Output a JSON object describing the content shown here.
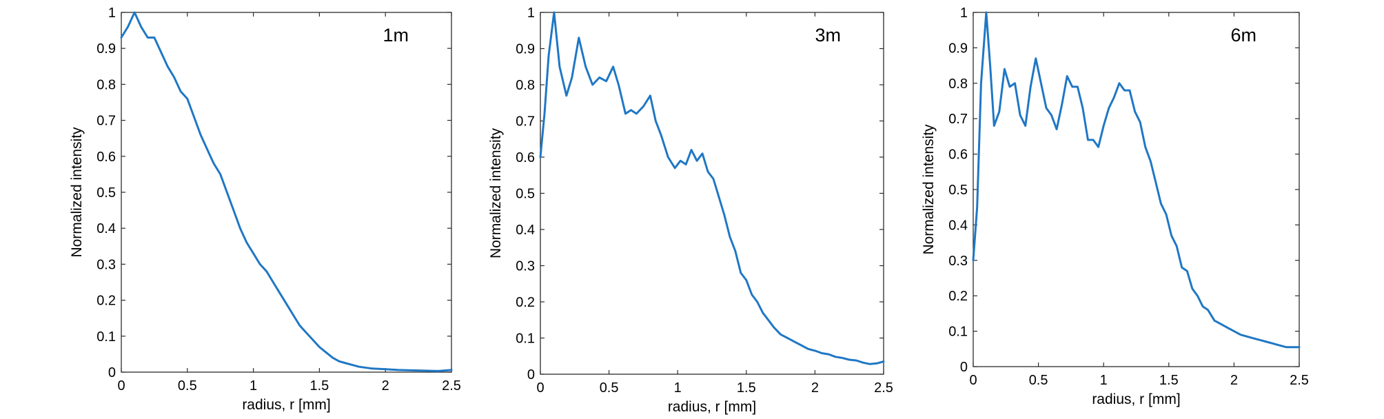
{
  "figure": {
    "panels": [
      {
        "label": "1m"
      },
      {
        "label": "3m"
      },
      {
        "label": "6m"
      }
    ]
  },
  "colors": {
    "line": "#1f77c4",
    "axis": "#2b2b2b",
    "text": "#000000"
  },
  "chart_data": [
    {
      "type": "line",
      "title": "",
      "annotation": "1m",
      "xlabel": "radius, r [mm]",
      "ylabel": "Normalized intensity",
      "xlim": [
        0,
        2.5
      ],
      "ylim": [
        0,
        1
      ],
      "xticks": [
        0,
        0.5,
        1,
        1.5,
        2,
        2.5
      ],
      "xtick_labels": [
        "0",
        "0.5",
        "1",
        "1.5",
        "2",
        "2.5"
      ],
      "yticks": [
        0,
        0.1,
        0.2,
        0.3,
        0.4,
        0.5,
        0.6,
        0.7,
        0.8,
        0.9,
        1
      ],
      "ytick_labels": [
        "0",
        "0.1",
        "0.2",
        "0.3",
        "0.4",
        "0.5",
        "0.6",
        "0.7",
        "0.8",
        "0.9",
        "1"
      ],
      "grid": false,
      "series": [
        {
          "x": [
            0,
            0.05,
            0.1,
            0.15,
            0.2,
            0.25,
            0.3,
            0.35,
            0.4,
            0.45,
            0.5,
            0.55,
            0.6,
            0.65,
            0.7,
            0.75,
            0.8,
            0.85,
            0.9,
            0.95,
            1.0,
            1.05,
            1.1,
            1.15,
            1.2,
            1.25,
            1.3,
            1.35,
            1.4,
            1.45,
            1.5,
            1.55,
            1.6,
            1.65,
            1.7,
            1.75,
            1.8,
            1.9,
            2.0,
            2.1,
            2.2,
            2.3,
            2.4,
            2.5
          ],
          "y": [
            0.93,
            0.96,
            1.0,
            0.96,
            0.93,
            0.93,
            0.89,
            0.85,
            0.82,
            0.78,
            0.76,
            0.71,
            0.66,
            0.62,
            0.58,
            0.55,
            0.5,
            0.45,
            0.4,
            0.36,
            0.33,
            0.3,
            0.28,
            0.25,
            0.22,
            0.19,
            0.16,
            0.13,
            0.11,
            0.09,
            0.07,
            0.055,
            0.04,
            0.03,
            0.025,
            0.02,
            0.015,
            0.01,
            0.008,
            0.006,
            0.005,
            0.004,
            0.003,
            0.006
          ]
        }
      ]
    },
    {
      "type": "line",
      "title": "",
      "annotation": "3m",
      "xlabel": "radius, r [mm]",
      "ylabel": "Normalized intensity",
      "xlim": [
        0,
        2.5
      ],
      "ylim": [
        0,
        1
      ],
      "xticks": [
        0,
        0.5,
        1,
        1.5,
        2,
        2.5
      ],
      "xtick_labels": [
        "0",
        "0.5",
        "1",
        "1.5",
        "2",
        "2.5"
      ],
      "yticks": [
        0,
        0.1,
        0.2,
        0.3,
        0.4,
        0.5,
        0.6,
        0.7,
        0.8,
        0.9,
        1
      ],
      "ytick_labels": [
        "0",
        "0.1",
        "0.2",
        "0.3",
        "0.4",
        "0.5",
        "0.6",
        "0.7",
        "0.8",
        "0.9",
        "1"
      ],
      "grid": false,
      "series": [
        {
          "x": [
            0,
            0.03,
            0.06,
            0.1,
            0.14,
            0.19,
            0.23,
            0.28,
            0.33,
            0.38,
            0.43,
            0.48,
            0.53,
            0.57,
            0.62,
            0.66,
            0.7,
            0.75,
            0.8,
            0.84,
            0.88,
            0.93,
            0.98,
            1.02,
            1.06,
            1.1,
            1.14,
            1.18,
            1.22,
            1.26,
            1.3,
            1.34,
            1.38,
            1.42,
            1.46,
            1.5,
            1.54,
            1.58,
            1.62,
            1.66,
            1.7,
            1.75,
            1.8,
            1.85,
            1.9,
            1.95,
            2.0,
            2.05,
            2.1,
            2.15,
            2.2,
            2.25,
            2.3,
            2.35,
            2.4,
            2.45,
            2.5
          ],
          "y": [
            0.6,
            0.72,
            0.88,
            1.0,
            0.85,
            0.77,
            0.82,
            0.93,
            0.85,
            0.8,
            0.82,
            0.81,
            0.85,
            0.8,
            0.72,
            0.73,
            0.72,
            0.74,
            0.77,
            0.7,
            0.66,
            0.6,
            0.57,
            0.59,
            0.58,
            0.62,
            0.59,
            0.61,
            0.56,
            0.54,
            0.49,
            0.44,
            0.38,
            0.34,
            0.28,
            0.26,
            0.22,
            0.2,
            0.17,
            0.15,
            0.13,
            0.11,
            0.1,
            0.09,
            0.08,
            0.07,
            0.065,
            0.058,
            0.055,
            0.048,
            0.045,
            0.04,
            0.038,
            0.032,
            0.028,
            0.03,
            0.035
          ]
        }
      ]
    },
    {
      "type": "line",
      "title": "",
      "annotation": "6m",
      "xlabel": "radius, r [mm]",
      "ylabel": "Normalized intensity",
      "xlim": [
        0,
        2.5
      ],
      "ylim": [
        0,
        1
      ],
      "xticks": [
        0,
        0.5,
        1,
        1.5,
        2,
        2.5
      ],
      "xtick_labels": [
        "0",
        "0.5",
        "1",
        "1.5",
        "2",
        "2.5"
      ],
      "yticks": [
        0,
        0.1,
        0.2,
        0.3,
        0.4,
        0.5,
        0.6,
        0.7,
        0.8,
        0.9,
        1
      ],
      "ytick_labels": [
        "0",
        "0.1",
        "0.2",
        "0.3",
        "0.4",
        "0.5",
        "0.6",
        "0.7",
        "0.8",
        "0.9",
        "1"
      ],
      "grid": false,
      "series": [
        {
          "x": [
            0,
            0.03,
            0.06,
            0.1,
            0.13,
            0.16,
            0.2,
            0.24,
            0.28,
            0.32,
            0.36,
            0.4,
            0.44,
            0.48,
            0.52,
            0.56,
            0.6,
            0.64,
            0.68,
            0.72,
            0.76,
            0.8,
            0.84,
            0.88,
            0.92,
            0.96,
            1.0,
            1.04,
            1.08,
            1.12,
            1.16,
            1.2,
            1.24,
            1.28,
            1.32,
            1.36,
            1.4,
            1.44,
            1.48,
            1.52,
            1.56,
            1.6,
            1.64,
            1.68,
            1.72,
            1.76,
            1.8,
            1.85,
            1.9,
            1.95,
            2.0,
            2.05,
            2.1,
            2.15,
            2.2,
            2.25,
            2.3,
            2.35,
            2.4,
            2.45,
            2.5
          ],
          "y": [
            0.3,
            0.45,
            0.8,
            1.0,
            0.85,
            0.68,
            0.72,
            0.84,
            0.79,
            0.8,
            0.71,
            0.68,
            0.79,
            0.87,
            0.8,
            0.73,
            0.71,
            0.67,
            0.74,
            0.82,
            0.79,
            0.79,
            0.73,
            0.64,
            0.64,
            0.62,
            0.68,
            0.73,
            0.76,
            0.8,
            0.78,
            0.78,
            0.72,
            0.69,
            0.62,
            0.58,
            0.52,
            0.46,
            0.43,
            0.37,
            0.34,
            0.28,
            0.27,
            0.22,
            0.2,
            0.17,
            0.16,
            0.13,
            0.12,
            0.11,
            0.1,
            0.09,
            0.085,
            0.08,
            0.075,
            0.07,
            0.065,
            0.06,
            0.055,
            0.055,
            0.055
          ]
        }
      ]
    }
  ]
}
